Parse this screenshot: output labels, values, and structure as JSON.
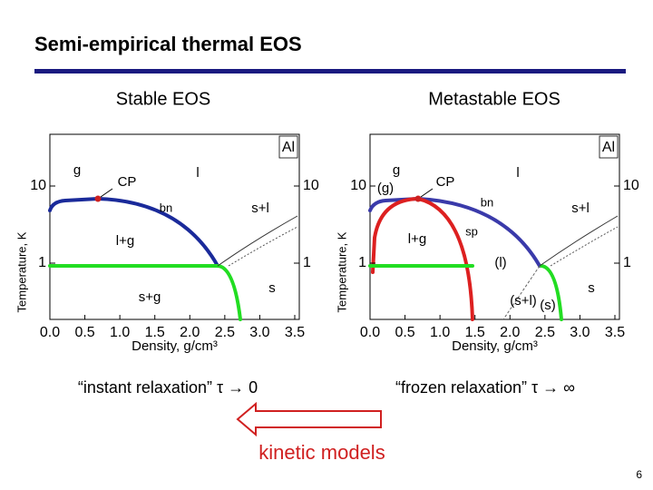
{
  "title": "Semi-empirical thermal EOS",
  "panels": [
    {
      "heading": "Stable EOS",
      "corner_label": "Al",
      "y_ticks": [
        "10",
        "1"
      ],
      "x_ticks": [
        "0.0",
        "0.5",
        "1.0",
        "1.5",
        "2.0",
        "2.5",
        "3.0",
        "3.5"
      ],
      "x_label": "Density, g/cm³",
      "y_label": "Temperature, K",
      "region_labels": [
        "g",
        "CP",
        "l",
        "bn",
        "s+l",
        "l+g",
        "s",
        "s+g"
      ],
      "caption": "“instant relaxation” τ → 0"
    },
    {
      "heading": "Metastable EOS",
      "corner_label": "Al",
      "y_ticks": [
        "10",
        "1"
      ],
      "x_ticks": [
        "0.0",
        "0.5",
        "1.0",
        "1.5",
        "2.0",
        "2.5",
        "3.0",
        "3.5"
      ],
      "x_label": "Density, g/cm³",
      "y_label": "Temperature, K",
      "region_labels": [
        "g",
        "(g)",
        "CP",
        "l",
        "bn",
        "sp",
        "l+g",
        "(l)",
        "s+l",
        "(s+l)",
        "(s)",
        "s"
      ],
      "caption": "“frozen relaxation” τ → ∞"
    }
  ],
  "arrow_label": "kinetic models",
  "page_number": "6"
}
